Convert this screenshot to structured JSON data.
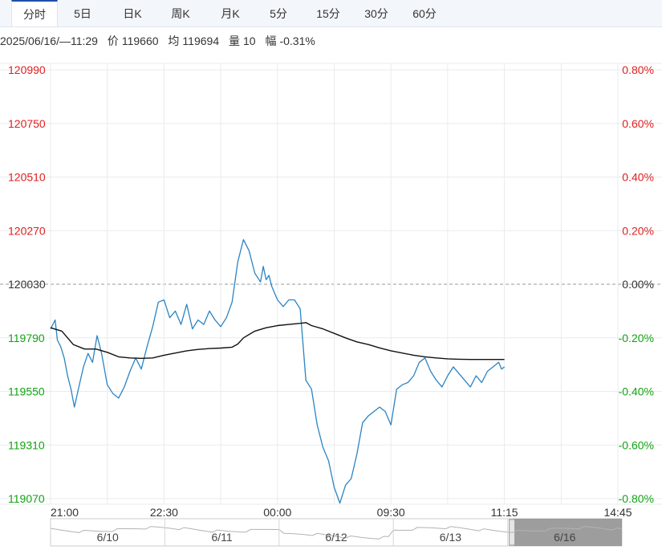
{
  "tabs": [
    {
      "label": "分时",
      "active": true
    },
    {
      "label": "5日"
    },
    {
      "label": "日K"
    },
    {
      "label": "周K"
    },
    {
      "label": "月K"
    },
    {
      "label": "5分"
    },
    {
      "label": "15分"
    },
    {
      "label": "30分"
    },
    {
      "label": "60分"
    }
  ],
  "info": {
    "datetime": "2025/06/16/—11:29",
    "price_label": "价",
    "price": "119660",
    "avg_label": "均",
    "avg": "119694",
    "vol_label": "量",
    "vol": "10",
    "chg_label": "幅",
    "chg": "-0.31%"
  },
  "colors": {
    "price_line": "#2b84c2",
    "avg_line": "#111111",
    "up": "#e02020",
    "down": "#13a313",
    "grid": "#e8ebef",
    "navigator_fill": "#8c8c8c"
  },
  "chart_data": {
    "type": "line",
    "prev_close": 120030,
    "ylim": [
      119070,
      120990
    ],
    "y_ticks_left": [
      "120990",
      "120750",
      "120510",
      "120270",
      "120030",
      "119790",
      "119550",
      "119310",
      "119070"
    ],
    "y_ticks_right": [
      "0.80%",
      "0.60%",
      "0.40%",
      "0.20%",
      "0.00%",
      "-0.20%",
      "-0.40%",
      "-0.60%",
      "-0.80%"
    ],
    "x_labels": [
      "21:00",
      "22:30",
      "00:00",
      "09:30",
      "11:15",
      "14:45"
    ],
    "x_label_positions": [
      0,
      0.2,
      0.4,
      0.6,
      0.8,
      1.0
    ],
    "x_range": [
      0,
      1
    ],
    "series": [
      {
        "key": "price",
        "x": [
          0,
          0.008,
          0.012,
          0.018,
          0.024,
          0.03,
          0.036,
          0.042,
          0.05,
          0.058,
          0.066,
          0.074,
          0.082,
          0.09,
          0.1,
          0.11,
          0.12,
          0.13,
          0.14,
          0.15,
          0.16,
          0.17,
          0.18,
          0.19,
          0.2,
          0.21,
          0.22,
          0.23,
          0.24,
          0.25,
          0.26,
          0.27,
          0.28,
          0.29,
          0.3,
          0.31,
          0.32,
          0.33,
          0.34,
          0.35,
          0.36,
          0.365,
          0.37,
          0.375,
          0.38,
          0.385,
          0.39,
          0.4,
          0.41,
          0.42,
          0.43,
          0.44,
          0.45,
          0.46,
          0.47,
          0.48,
          0.49,
          0.5,
          0.51,
          0.52,
          0.53,
          0.54,
          0.55,
          0.56,
          0.57,
          0.58,
          0.59,
          0.6,
          0.61,
          0.62,
          0.63,
          0.64,
          0.65,
          0.66,
          0.67,
          0.68,
          0.69,
          0.7,
          0.71,
          0.72,
          0.73,
          0.74,
          0.75,
          0.76,
          0.77,
          0.78,
          0.79,
          0.795,
          0.8
        ],
        "values": [
          119830,
          119870,
          119780,
          119750,
          119700,
          119620,
          119560,
          119480,
          119570,
          119660,
          119720,
          119680,
          119800,
          119720,
          119580,
          119540,
          119520,
          119570,
          119640,
          119700,
          119650,
          119750,
          119840,
          119950,
          119960,
          119880,
          119910,
          119850,
          119940,
          119830,
          119870,
          119850,
          119910,
          119870,
          119840,
          119880,
          119950,
          120130,
          120230,
          120180,
          120080,
          120060,
          120040,
          120110,
          120050,
          120070,
          120020,
          119960,
          119930,
          119960,
          119960,
          119920,
          119600,
          119560,
          119400,
          119300,
          119240,
          119120,
          119050,
          119130,
          119160,
          119270,
          119410,
          119440,
          119460,
          119480,
          119460,
          119400,
          119560,
          119580,
          119590,
          119620,
          119680,
          119700,
          119640,
          119600,
          119570,
          119620,
          119660,
          119630,
          119600,
          119570,
          119620,
          119590,
          119640,
          119660,
          119680,
          119650,
          119660
        ]
      },
      {
        "key": "avg",
        "x": [
          0,
          0.02,
          0.04,
          0.06,
          0.08,
          0.1,
          0.12,
          0.14,
          0.16,
          0.18,
          0.2,
          0.22,
          0.24,
          0.26,
          0.28,
          0.3,
          0.32,
          0.33,
          0.34,
          0.36,
          0.38,
          0.4,
          0.42,
          0.44,
          0.45,
          0.46,
          0.48,
          0.5,
          0.52,
          0.54,
          0.56,
          0.58,
          0.6,
          0.62,
          0.64,
          0.66,
          0.68,
          0.7,
          0.72,
          0.74,
          0.76,
          0.78,
          0.8
        ],
        "values": [
          119835,
          119820,
          119760,
          119740,
          119740,
          119725,
          119705,
          119700,
          119698,
          119700,
          119712,
          119722,
          119732,
          119738,
          119742,
          119744,
          119748,
          119762,
          119790,
          119820,
          119835,
          119845,
          119850,
          119855,
          119858,
          119845,
          119830,
          119810,
          119790,
          119772,
          119760,
          119745,
          119732,
          119722,
          119712,
          119705,
          119700,
          119696,
          119694,
          119693,
          119693,
          119693,
          119693
        ]
      }
    ]
  },
  "navigator": {
    "labels": [
      "6/10",
      "6/11",
      "6/12",
      "6/13",
      "6/16"
    ],
    "selected_index": 4
  }
}
